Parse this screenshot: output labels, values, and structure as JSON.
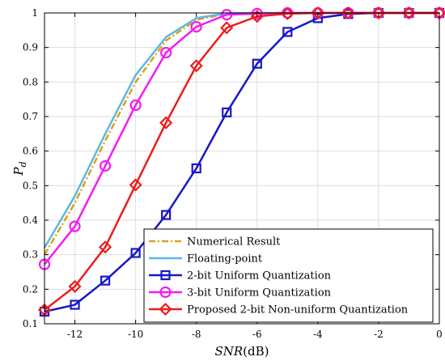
{
  "chart_data": {
    "type": "line",
    "xlabel": "SNR(dB)",
    "ylabel": "Pd",
    "xlim": [
      -13,
      0
    ],
    "ylim": [
      0.1,
      1
    ],
    "x_ticks": [
      -12,
      -10,
      -8,
      -6,
      -4,
      -2,
      0
    ],
    "y_ticks": [
      0.1,
      0.2,
      0.3,
      0.4,
      0.5,
      0.6,
      0.7,
      0.8,
      0.9,
      1
    ],
    "grid": true,
    "legend_position": "bottom-right",
    "x": [
      -13,
      -12,
      -11,
      -10,
      -9,
      -8,
      -7,
      -6,
      -5,
      -4,
      -3,
      -2,
      -1,
      0
    ],
    "series": [
      {
        "name": "Numerical Result",
        "color": "#D9A21C",
        "line_style": "dash-dot",
        "marker": "none",
        "values": [
          0.3,
          0.45,
          0.63,
          0.8,
          0.92,
          0.98,
          0.998,
          1,
          1,
          1,
          1,
          1,
          1,
          1
        ]
      },
      {
        "name": "Floating-point",
        "color": "#5EB8DF",
        "line_style": "solid",
        "marker": "none",
        "values": [
          0.32,
          0.47,
          0.65,
          0.82,
          0.93,
          0.985,
          0.999,
          1,
          1,
          1,
          1,
          1,
          1,
          1
        ]
      },
      {
        "name": "2-bit Uniform Quantization",
        "color": "#1717C8",
        "line_style": "solid",
        "marker": "square",
        "values": [
          0.135,
          0.155,
          0.225,
          0.305,
          0.415,
          0.55,
          0.712,
          0.853,
          0.945,
          0.985,
          0.997,
          1,
          1,
          1
        ]
      },
      {
        "name": "3-bit Uniform Quantization",
        "color": "#F21CF2",
        "line_style": "solid",
        "marker": "circle",
        "values": [
          0.272,
          0.382,
          0.557,
          0.733,
          0.885,
          0.96,
          0.995,
          0.998,
          1,
          1,
          1,
          1,
          1,
          1
        ]
      },
      {
        "name": "Proposed 2-bit Non-uniform Quantization",
        "color": "#EE1C1C",
        "line_style": "solid",
        "marker": "diamond",
        "values": [
          0.14,
          0.208,
          0.322,
          0.502,
          0.682,
          0.847,
          0.957,
          0.99,
          0.998,
          1,
          1,
          1,
          1,
          1
        ]
      }
    ]
  }
}
